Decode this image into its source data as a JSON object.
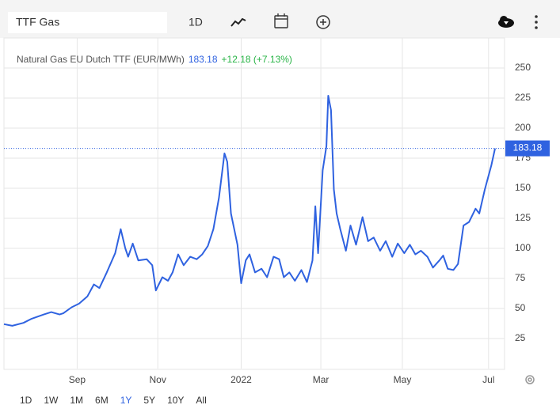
{
  "toolbar": {
    "search": "TTF Gas",
    "interval": "1D"
  },
  "chart_data": {
    "type": "line",
    "title": "Natural Gas EU Dutch TTF (EUR/MWh)",
    "price": 183.18,
    "change": "+12.18 (+7.13%)",
    "series": [
      {
        "name": "Natural Gas EU Dutch TTF",
        "color": "#2f62e0",
        "x": [
          0,
          0.9,
          2.1,
          3.0,
          4.3,
          5.1,
          6.0,
          6.4,
          7.3,
          8.1,
          9.0,
          9.7,
          10.3,
          11.1,
          12.0,
          12.6,
          13.1,
          13.4,
          13.9,
          14.5,
          15.4,
          16.0,
          16.4,
          17.1,
          17.7,
          18.2,
          18.8,
          19.4,
          20.1,
          20.8,
          21.4,
          22.0,
          22.6,
          23.2,
          23.8,
          24.1,
          24.5,
          25.2,
          25.6,
          26.1,
          26.5,
          27.1,
          27.8,
          28.4,
          29.1,
          29.7,
          30.2,
          30.8,
          31.4,
          32.1,
          32.7,
          33.3,
          33.6,
          33.9,
          34.4,
          34.8,
          35.0,
          35.3,
          35.6,
          35.9,
          36.3,
          36.9,
          37.4,
          38.0,
          38.7,
          39.3,
          39.9,
          40.6,
          41.2,
          41.9,
          42.5,
          43.2,
          43.8,
          44.4,
          45.0,
          45.7,
          46.3,
          47.0,
          47.4,
          47.9,
          48.5,
          49.0,
          49.6,
          50.2,
          50.9,
          51.3,
          51.9,
          52.6,
          53.0
        ],
        "values": [
          37,
          35.6,
          38,
          41.5,
          45,
          47,
          45,
          46,
          51,
          54,
          60,
          70,
          67,
          80,
          96,
          116,
          100,
          93,
          104,
          90,
          91,
          86,
          65,
          76,
          73,
          80,
          95,
          86,
          93,
          91,
          95,
          102,
          116,
          142,
          179,
          172,
          129,
          103,
          71,
          90,
          95,
          80,
          83,
          76,
          93,
          91,
          76,
          80,
          73,
          82,
          72,
          90,
          135,
          96,
          165,
          185,
          227,
          215,
          149,
          129,
          116,
          98,
          119,
          103,
          126,
          106,
          109,
          98,
          106,
          93,
          104,
          96,
          103,
          95,
          98,
          93,
          84,
          90,
          94,
          83,
          82,
          87,
          119,
          122,
          133,
          129,
          149,
          169,
          183.18
        ]
      }
    ],
    "xlim": [
      0,
      53
    ],
    "xticks": [
      {
        "value": 7.9,
        "label": "Sep"
      },
      {
        "value": 16.6,
        "label": "Nov"
      },
      {
        "value": 25.6,
        "label": "2022"
      },
      {
        "value": 34.2,
        "label": "Mar"
      },
      {
        "value": 43.0,
        "label": "May"
      },
      {
        "value": 52.3,
        "label": "Jul"
      }
    ],
    "ylim": [
      0,
      275
    ],
    "yticks": [
      25,
      50,
      75,
      100,
      125,
      150,
      175,
      200,
      225,
      250
    ],
    "grid": true
  },
  "ranges": [
    "1D",
    "1W",
    "1M",
    "6M",
    "1Y",
    "5Y",
    "10Y",
    "All"
  ],
  "active_range": "1Y"
}
